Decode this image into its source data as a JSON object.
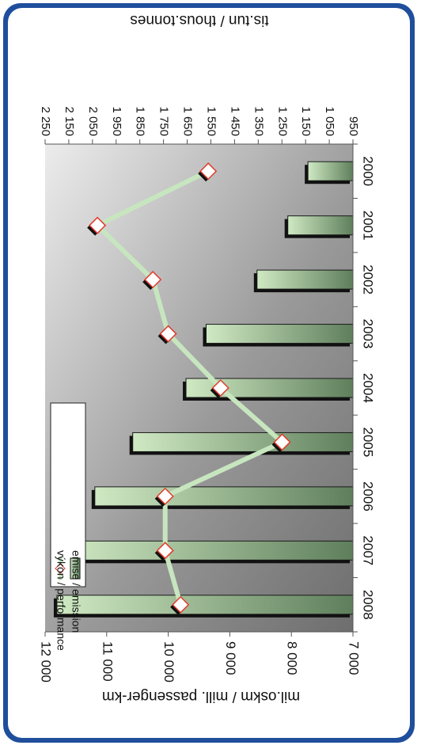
{
  "chart_data": {
    "type": "bar",
    "categories": [
      "2000",
      "2001",
      "2002",
      "2003",
      "2004",
      "2005",
      "2006",
      "2007",
      "2008"
    ],
    "series": [
      {
        "name": "emise / emission",
        "type": "bar",
        "axis": "left",
        "values": [
          1140,
          1225,
          1355,
          1570,
          1655,
          1880,
          2040,
          2170,
          2200
        ]
      },
      {
        "name": "výkon / performance",
        "type": "line",
        "axis": "right",
        "values": [
          9350,
          11150,
          10250,
          10000,
          9150,
          8150,
          10050,
          10050,
          9800
        ]
      }
    ],
    "y_left": {
      "label": "tis.tun / thous.tonnes",
      "min": 950,
      "max": 2250,
      "ticks": [
        "2 250",
        "2 150",
        "2 050",
        "1 950",
        "1 850",
        "1 750",
        "1 650",
        "1 550",
        "1 450",
        "1 350",
        "1 250",
        "1 150",
        "1 050",
        "950"
      ]
    },
    "y_right": {
      "label": "mil.oskm / mill. passenger-km",
      "min": 7000,
      "max": 12000,
      "ticks": [
        "12 000",
        "11 000",
        "10 000",
        "9 000",
        "8 000",
        "7 000"
      ]
    },
    "orientation": "rotated-180",
    "legend_position": "top-left",
    "colors": {
      "frame_bg": "#1f4e9c",
      "panel_bg": "#ffffff",
      "bar_dark": "#5f7f5c",
      "bar_light": "#cfe9c3",
      "bar_shadow": "#111111",
      "line": "#c7e6bf",
      "marker_edge": "#e23a2a",
      "plot_dark": "#6e6e6e",
      "plot_light": "#ececec"
    }
  }
}
